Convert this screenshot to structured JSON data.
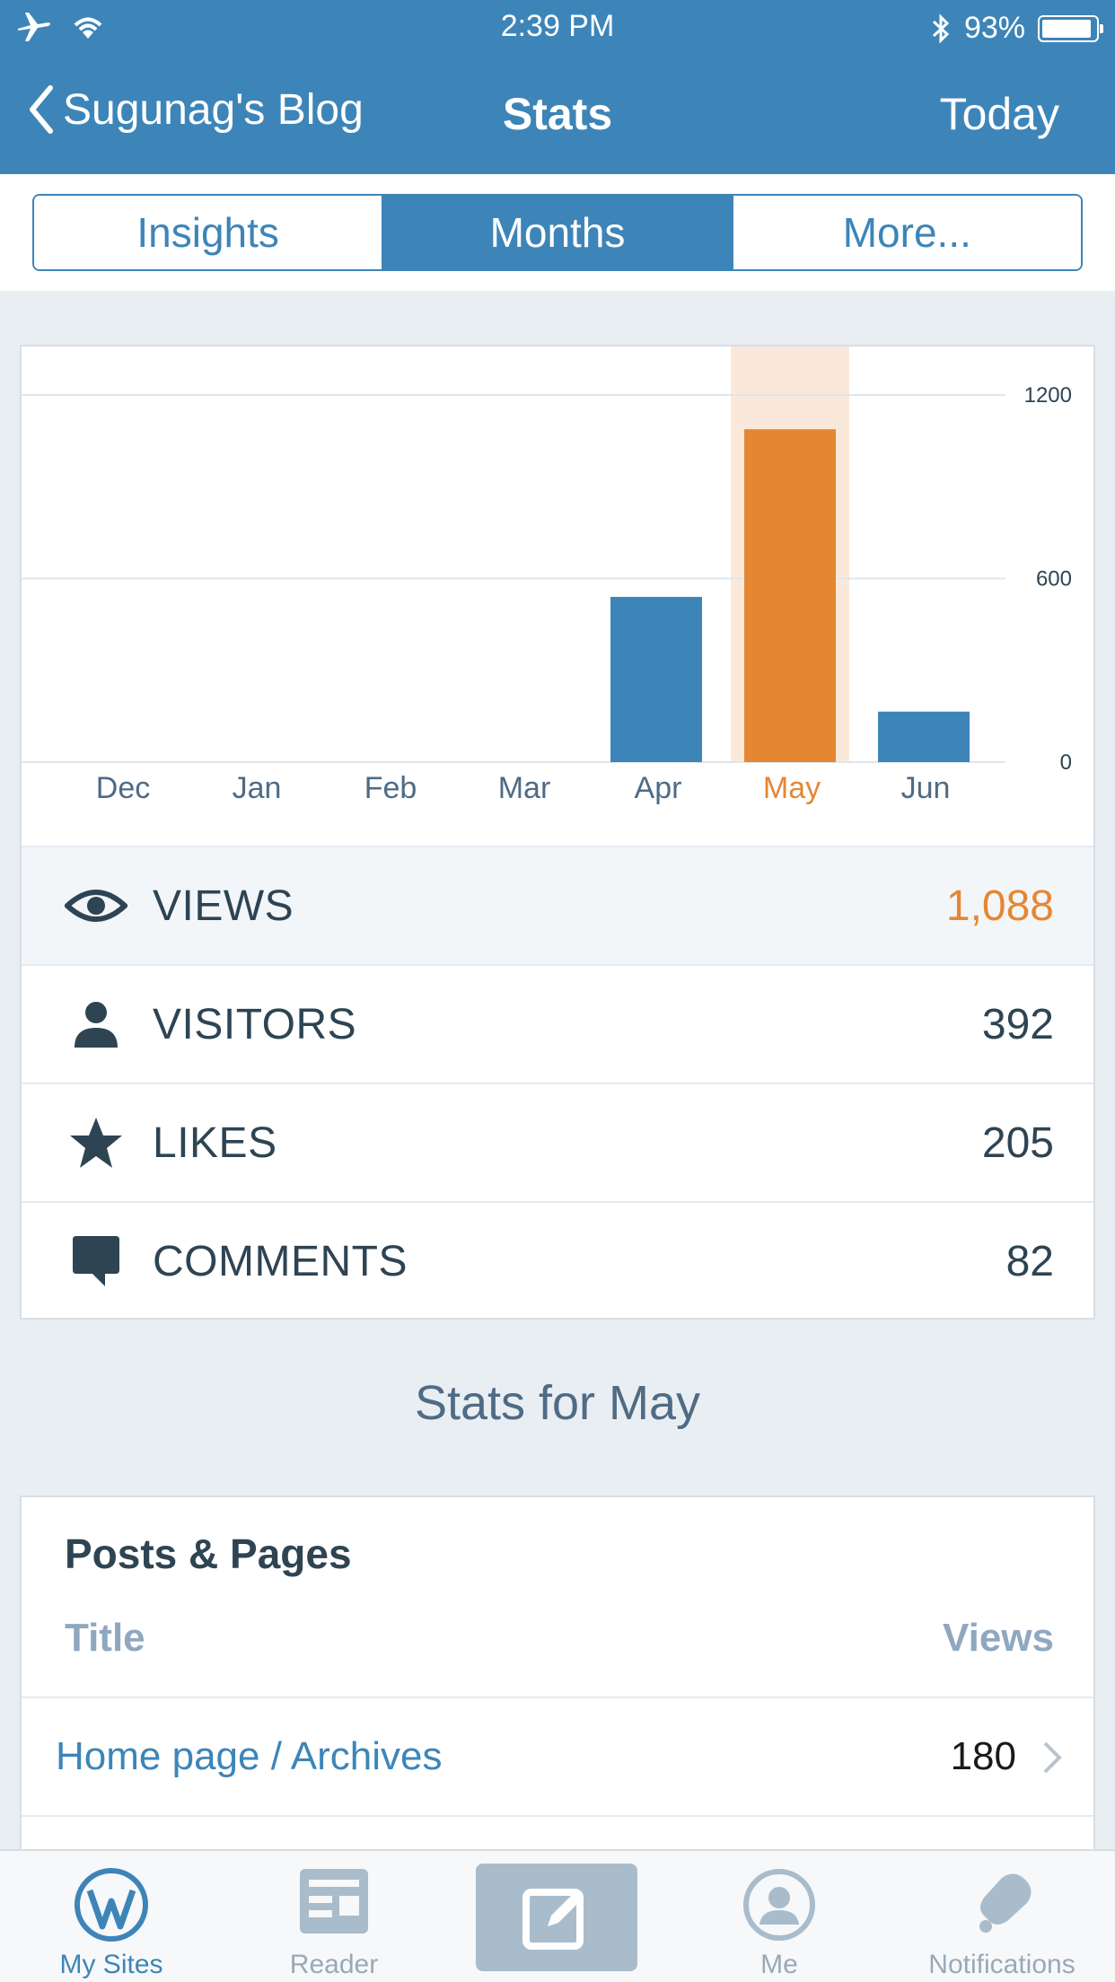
{
  "status_bar": {
    "time": "2:39 PM",
    "battery": "93%",
    "battery_level": 0.93
  },
  "nav": {
    "back_label": "Sugunag's Blog",
    "title": "Stats",
    "right_label": "Today"
  },
  "segments": [
    {
      "label": "Insights",
      "active": false
    },
    {
      "label": "Months",
      "active": true
    },
    {
      "label": "More...",
      "active": false
    }
  ],
  "chart_data": {
    "type": "bar",
    "categories": [
      "Dec",
      "Jan",
      "Feb",
      "Mar",
      "Apr",
      "May",
      "Jun"
    ],
    "values": [
      0,
      0,
      0,
      0,
      540,
      1088,
      165
    ],
    "selected_index": 5,
    "ylim": [
      0,
      1200
    ],
    "y_ticks": [
      "1200",
      "600",
      "0"
    ],
    "colors": {
      "bar": "#3d85b8",
      "selected_bar": "#e58732",
      "selected_bg": "#fae9da",
      "grid": "#dfe6ec"
    }
  },
  "stats": [
    {
      "label": "VIEWS",
      "value": "1,088",
      "icon": "eye-icon",
      "selected": true
    },
    {
      "label": "VISITORS",
      "value": "392",
      "icon": "person-icon",
      "selected": false
    },
    {
      "label": "LIKES",
      "value": "205",
      "icon": "star-icon",
      "selected": false
    },
    {
      "label": "COMMENTS",
      "value": "82",
      "icon": "comment-icon",
      "selected": false
    }
  ],
  "section_title": "Stats for May",
  "posts": {
    "title": "Posts & Pages",
    "col_title": "Title",
    "col_views": "Views",
    "rows": [
      {
        "title": "Home page / Archives",
        "views": "180"
      }
    ]
  },
  "tabbar": {
    "items": [
      {
        "label": "My Sites",
        "icon": "wordpress-icon",
        "active": true
      },
      {
        "label": "Reader",
        "icon": "reader-icon",
        "active": false
      },
      {
        "label": "",
        "icon": "write-icon",
        "active": false
      },
      {
        "label": "Me",
        "icon": "me-icon",
        "active": false
      },
      {
        "label": "Notifications",
        "icon": "bell-icon",
        "active": false
      }
    ]
  }
}
